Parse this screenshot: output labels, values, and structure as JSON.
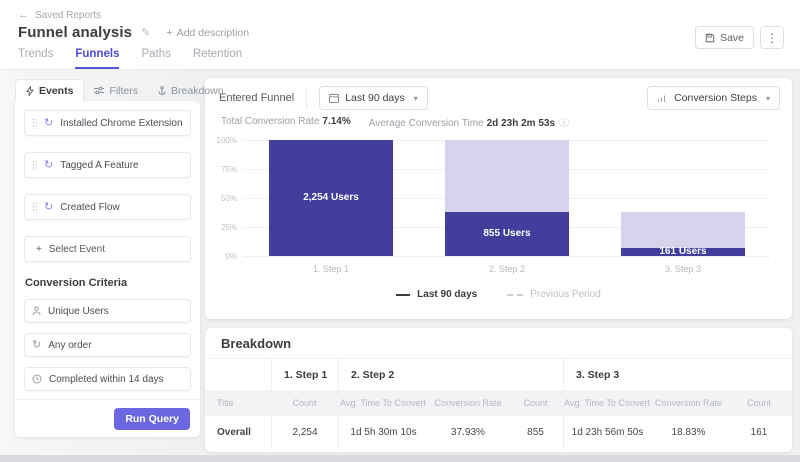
{
  "header": {
    "back": "Saved Reports",
    "title": "Funnel analysis",
    "add_description": "Add description",
    "tabs": [
      "Trends",
      "Funnels",
      "Paths",
      "Retention"
    ],
    "active_tab": "Funnels",
    "save": "Save"
  },
  "sidebar": {
    "tabs": [
      "Events",
      "Filters",
      "Breakdown"
    ],
    "active_tab": "Events",
    "events": [
      "Installed Chrome Extension",
      "Tagged A Feature",
      "Created Flow"
    ],
    "select_event": "Select Event",
    "criteria_title": "Conversion Criteria",
    "criteria": [
      "Unique Users",
      "Any order",
      "Completed within 14 days"
    ],
    "run_query": "Run Query"
  },
  "funnel_panel": {
    "entered_funnel": "Entered Funnel",
    "date_range": "Last 90 days",
    "view_selector": "Conversion Steps",
    "total_conversion_rate_label": "Total Conversion Rate",
    "total_conversion_rate": "7.14%",
    "avg_conversion_time_label": "Average Conversion Time",
    "avg_conversion_time": "2d 23h 2m 53s"
  },
  "chart_data": {
    "type": "bar",
    "title": "Entered Funnel — Conversion Steps",
    "ylim": [
      0,
      100
    ],
    "y_ticks": [
      "100%",
      "75%",
      "50%",
      "25%",
      "0%"
    ],
    "grid": true,
    "categories": [
      "1. Step 1",
      "2. Step 2",
      "3. Step 3"
    ],
    "series": [
      {
        "name": "Last 90 days",
        "values": [
          2254,
          855,
          161
        ]
      }
    ],
    "steps": [
      {
        "category": "1. Step 1",
        "users": 2254,
        "users_label": "2,254 Users",
        "percent_of_first": 100
      },
      {
        "category": "2. Step 2",
        "users": 855,
        "users_label": "855 Users",
        "percent_of_first": 37.93
      },
      {
        "category": "3. Step 3",
        "users": 161,
        "users_label": "161 Users",
        "percent_of_first": 7.14
      }
    ],
    "legend": [
      {
        "name": "Last 90 days",
        "style": "solid",
        "active": true
      },
      {
        "name": "Previous Period",
        "style": "dashed",
        "active": false
      }
    ],
    "legend_position": "bottom-center"
  },
  "breakdown": {
    "title": "Breakdown",
    "group_headers": [
      "1. Step 1",
      "2. Step 2",
      "3. Step 3"
    ],
    "columns": [
      "Title",
      "Count",
      "Avg. Time To Convert",
      "Conversion Rate",
      "Count",
      "Avg. Time To Convert",
      "Conversion Rate",
      "Count"
    ],
    "rows": [
      {
        "title": "Overall",
        "values": [
          "2,254",
          "1d 5h 30m 10s",
          "37.93%",
          "855",
          "1d 23h 56m 50s",
          "18.83%",
          "161"
        ]
      }
    ]
  },
  "icons": {
    "back": "←",
    "edit": "✎",
    "plus": "+",
    "kebab": "⋮",
    "caret": "▾",
    "info": "ⓘ",
    "repeat": "↻",
    "any_order": "↻"
  },
  "colors": {
    "accent": "#5456d6",
    "bar_dark": "#413e9c",
    "bar_light": "#d5d4ec",
    "run_button": "#6a67e0",
    "muted_text": "#9aa0a7"
  }
}
